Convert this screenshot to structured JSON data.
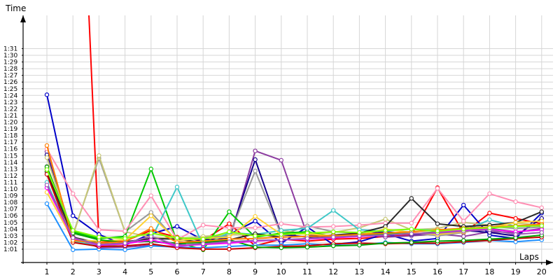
{
  "chart_data": {
    "type": "line",
    "ylabel": "Time",
    "xlabel": "Laps",
    "y_unit": "lap time (m:ss)",
    "ylim": [
      "1:00",
      "1:32"
    ],
    "xlim": [
      0,
      20
    ],
    "grid": true,
    "legend": "none",
    "y_ticks": [
      "1:01",
      "1:02",
      "1:03",
      "1:04",
      "1:05",
      "1:06",
      "1:07",
      "1:08",
      "1:09",
      "1:10",
      "1:11",
      "1:12",
      "1:13",
      "1:14",
      "1:15",
      "1:16",
      "1:17",
      "1:18",
      "1:19",
      "1:20",
      "1:21",
      "1:22",
      "1:23",
      "1:24",
      "1:25",
      "1:26",
      "1:27",
      "1:28",
      "1:29",
      "1:30",
      "1:31"
    ],
    "x_ticks": [
      "1",
      "2",
      "3",
      "4",
      "5",
      "6",
      "7",
      "8",
      "9",
      "10",
      "11",
      "12",
      "13",
      "14",
      "15",
      "16",
      "17",
      "18",
      "19",
      "20"
    ],
    "series": [
      {
        "color": "#ff0000",
        "values": [
          "2:30",
          "2:30",
          "1:02.0",
          "1:02.2",
          "1:03.8",
          "1:02.8",
          "1:02.3",
          "1:04.8",
          "1:01.5",
          "1:02.5",
          "1:02.2",
          "1:02.5",
          "1:02.6",
          "1:02.9",
          "1:03.1",
          "1:10.2",
          "1:03.4",
          "1:06.4",
          "1:05.6",
          "1:04.8"
        ]
      },
      {
        "color": "#0000c8",
        "values": [
          "1:24.1",
          "1:06.0",
          "1:03.2",
          "1:01.6",
          "1:03.3",
          "1:04.4",
          "1:02.4",
          "1:03.2",
          "1:05.2",
          "1:01.9",
          "1:04.3",
          "1:01.7",
          "1:02.1",
          "1:03.3",
          "1:02.2",
          "1:02.6",
          "1:07.6",
          "1:03.1",
          "1:02.6",
          "1:06.4"
        ]
      },
      {
        "color": "#8c3ca0",
        "values": [
          "1:15.6",
          "1:02.9",
          "1:01.2",
          "1:01.3",
          "1:01.6",
          "1:01.4",
          "1:01.8",
          "1:02.2",
          "1:15.7",
          "1:14.3",
          "1:03.1",
          "1:02.9",
          "1:03.4",
          "1:02.8",
          "1:03.0",
          "1:03.3",
          "1:02.9",
          "1:03.6",
          "1:03.5",
          "1:04.1"
        ]
      },
      {
        "color": "#15008c",
        "values": [
          "1:15.1",
          "1:02.5",
          "1:01.8",
          "1:02.0",
          "1:02.2",
          "1:01.7",
          "1:02.4",
          "1:02.7",
          "1:14.4",
          "1:03.2",
          "1:02.8",
          "1:03.0",
          "1:03.2",
          "1:03.6",
          "1:03.2",
          "1:03.4",
          "1:03.8",
          "1:03.5",
          "1:03.0",
          "1:05.6"
        ]
      },
      {
        "color": "#999999",
        "values": [
          "1:13.4",
          "1:03.2",
          "1:14.6",
          "1:03.6",
          "1:06.5",
          "1:02.2",
          "1:02.8",
          "1:03.0",
          "1:12.7",
          "1:03.1",
          "1:04.5",
          "1:03.6",
          "1:03.4",
          "1:03.2",
          "1:03.5",
          "1:03.0",
          "1:03.5",
          "1:04.4",
          "1:04.1",
          "1:04.3"
        ]
      },
      {
        "color": "#c8c878",
        "values": [
          "1:14.7",
          "1:03.0",
          "1:15.0",
          "1:03.6",
          "1:02.8",
          "1:02.6",
          "1:02.9",
          "1:03.2",
          "1:03.1",
          "1:03.8",
          "1:03.2",
          "1:03.5",
          "1:04.2",
          "1:05.5",
          "1:03.9",
          "1:04.1",
          "1:05.0",
          "1:04.6",
          "1:04.9",
          "1:04.6"
        ]
      },
      {
        "color": "#00c800",
        "values": [
          "1:13.0",
          "1:03.6",
          "1:02.6",
          "1:02.9",
          "1:13.0",
          "1:02.1",
          "1:00.9",
          "1:06.6",
          "1:02.8",
          "1:03.4",
          "1:03.6",
          "1:02.9",
          "1:03.0",
          "1:03.2",
          "1:03.3",
          "1:03.6",
          "1:04.2",
          "1:04.1",
          "1:03.6",
          "1:03.9"
        ]
      },
      {
        "color": "#ff8fb4",
        "values": [
          "1:16.0",
          "1:09.3",
          "1:03.9",
          "1:03.7",
          "1:09.0",
          "1:02.4",
          "1:04.6",
          "1:04.2",
          "1:04.2",
          "1:04.8",
          "1:04.3",
          "1:04.4",
          "1:04.6",
          "1:04.9",
          "1:04.9",
          "1:10.1",
          "1:05.2",
          "1:09.3",
          "1:08.1",
          "1:07.2"
        ]
      },
      {
        "color": "#40c8c8",
        "values": [
          "1:11.0",
          "1:02.2",
          "1:01.5",
          "1:01.8",
          "1:02.5",
          "1:10.3",
          "1:01.5",
          "1:03.5",
          "1:03.2",
          "1:03.8",
          "1:04.1",
          "1:06.8",
          "1:03.9",
          "1:03.7",
          "1:04.0",
          "1:03.8",
          "1:03.7",
          "1:05.4",
          "1:04.4",
          "1:04.6"
        ]
      },
      {
        "color": "#282828",
        "values": [
          "1:12.6",
          "1:02.8",
          "1:01.9",
          "1:02.1",
          "1:02.6",
          "1:02.5",
          "1:02.0",
          "1:02.4",
          "1:03.3",
          "1:02.8",
          "1:02.9",
          "1:03.1",
          "1:03.4",
          "1:04.4",
          "1:08.6",
          "1:04.8",
          "1:04.4",
          "1:04.6",
          "1:05.0",
          "1:06.6"
        ]
      },
      {
        "color": "#ffd232",
        "values": [
          "1:09.5",
          "1:02.4",
          "1:02.2",
          "1:02.4",
          "1:06.0",
          "1:02.3",
          "1:02.6",
          "1:02.8",
          "1:05.9",
          "1:03.2",
          "1:03.3",
          "1:03.0",
          "1:03.1",
          "1:04.0",
          "1:03.5",
          "1:03.2",
          "1:03.6",
          "1:04.2",
          "1:05.0",
          "1:05.2"
        ]
      },
      {
        "color": "#1e90ff",
        "values": [
          "1:07.8",
          "1:00.9",
          "1:01.0",
          "1:00.9",
          "1:01.5",
          "1:01.3",
          "1:01.2",
          "1:01.4",
          "1:01.6",
          "1:01.6",
          "1:01.8",
          "1:01.6",
          "1:01.6",
          "1:02.0",
          "1:01.8",
          "1:01.8",
          "1:02.0",
          "1:02.3",
          "1:02.1",
          "1:02.4"
        ]
      },
      {
        "color": "#c80000",
        "values": [
          "1:12.2",
          "1:02.0",
          "1:01.4",
          "1:01.5",
          "1:01.8",
          "1:01.2",
          "1:01.0",
          "1:01.0",
          "1:01.2",
          "1:01.4",
          "1:01.5",
          "1:01.8",
          "1:01.9",
          "1:01.8",
          "1:01.9",
          "1:01.9",
          "1:02.1",
          "1:02.3",
          "1:02.6",
          "1:02.8"
        ]
      },
      {
        "color": "#00a000",
        "values": [
          "1:13.3",
          "1:03.4",
          "1:02.4",
          "1:02.0",
          "1:02.2",
          "1:01.9",
          "1:02.0",
          "1:02.4",
          "1:01.3",
          "1:01.2",
          "1:01.3",
          "1:01.5",
          "1:01.6",
          "1:01.9",
          "1:02.0",
          "1:02.2",
          "1:02.3",
          "1:02.5",
          "1:02.7",
          "1:03.1"
        ]
      },
      {
        "color": "#ff00ff",
        "values": [
          "1:10.2",
          "1:02.6",
          "1:01.6",
          "1:01.8",
          "1:02.4",
          "1:01.5",
          "1:01.7",
          "1:01.9",
          "1:02.2",
          "1:02.4",
          "1:02.5",
          "1:02.7",
          "1:02.9",
          "1:03.1",
          "1:03.3",
          "1:03.5",
          "1:03.8",
          "1:04.0",
          "1:03.6",
          "1:03.9"
        ]
      },
      {
        "color": "#ff7f00",
        "values": [
          "1:16.5",
          "1:02.3",
          "1:01.9",
          "1:02.1",
          "1:04.1",
          "1:02.0",
          "1:02.2",
          "1:02.5",
          "1:02.6",
          "1:02.8",
          "1:02.9",
          "1:03.0",
          "1:03.2",
          "1:03.4",
          "1:03.6",
          "1:03.9",
          "1:04.1",
          "1:04.3",
          "1:04.5",
          "1:04.7"
        ]
      },
      {
        "color": "#9b59b6",
        "values": [
          "1:10.6",
          "1:02.7",
          "1:01.7",
          "1:01.9",
          "1:02.9",
          "1:01.6",
          "1:01.8",
          "1:02.1",
          "1:02.3",
          "1:02.4",
          "1:02.6",
          "1:02.8",
          "1:03.0",
          "1:03.1",
          "1:03.3",
          "1:03.4",
          "1:03.7",
          "1:03.9",
          "1:03.2",
          "1:03.5"
        ]
      },
      {
        "color": "#7fff00",
        "values": [
          "1:12.9",
          "1:03.8",
          "1:02.8",
          "1:02.6",
          "1:03.4",
          "1:02.7",
          "1:02.5",
          "1:03.6",
          "1:03.0",
          "1:03.2",
          "1:03.4",
          "1:03.6",
          "1:03.5",
          "1:03.8",
          "1:04.0",
          "1:03.7",
          "1:04.0",
          "1:04.2",
          "1:04.4",
          "1:04.5"
        ]
      }
    ]
  }
}
